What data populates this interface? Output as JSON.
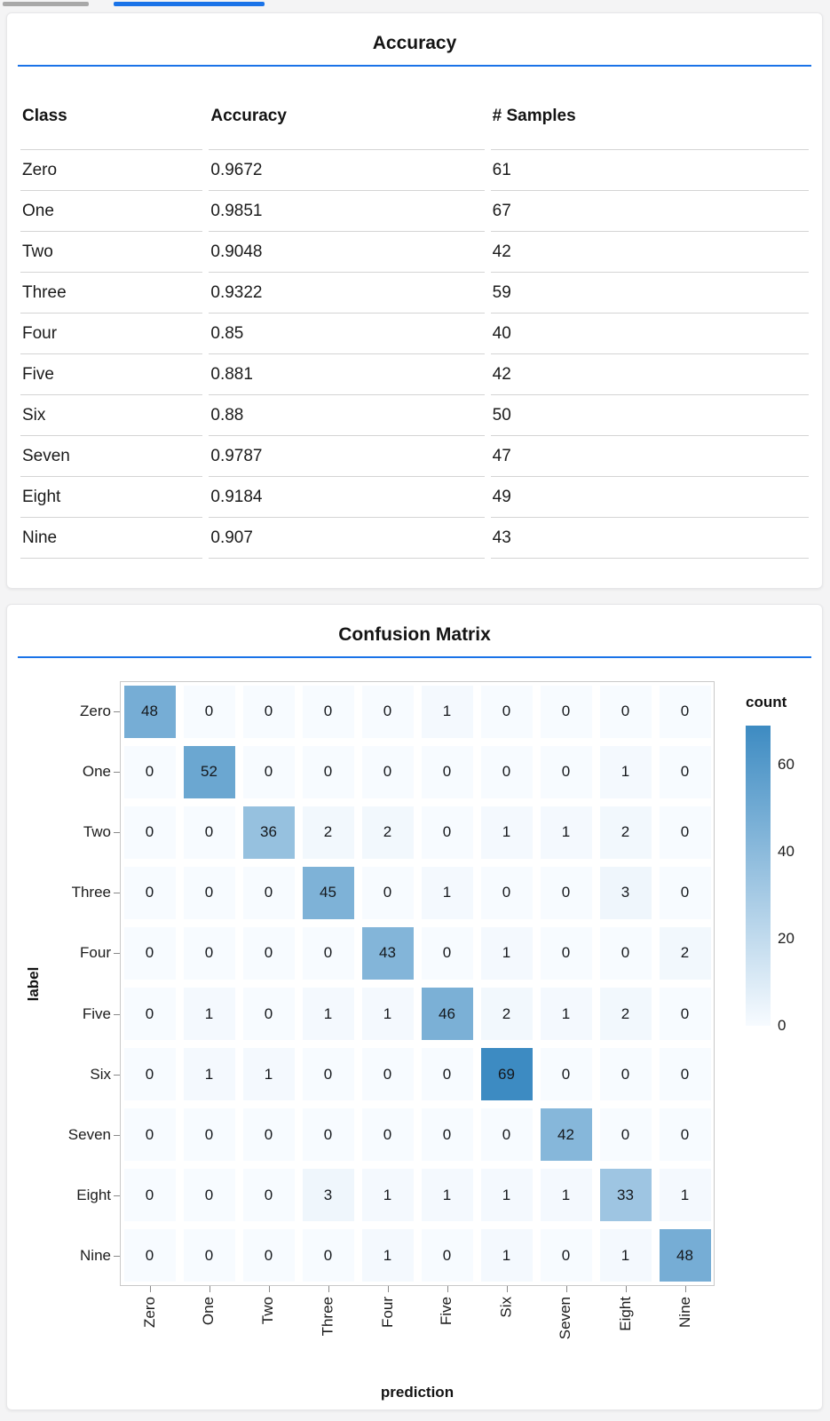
{
  "theme": {
    "accent_blue": "#1a73e8",
    "page_background": "#f4f4f5",
    "card_background": "#ffffff"
  },
  "top_bars": {
    "inactive_color": "#a8a8a8",
    "active_color": "#1a73e8"
  },
  "accuracy_card": {
    "title": "Accuracy",
    "table": {
      "columns": [
        "Class",
        "Accuracy",
        "# Samples"
      ],
      "rows": [
        [
          "Zero",
          "0.9672",
          "61"
        ],
        [
          "One",
          "0.9851",
          "67"
        ],
        [
          "Two",
          "0.9048",
          "42"
        ],
        [
          "Three",
          "0.9322",
          "59"
        ],
        [
          "Four",
          "0.85",
          "40"
        ],
        [
          "Five",
          "0.881",
          "42"
        ],
        [
          "Six",
          "0.88",
          "50"
        ],
        [
          "Seven",
          "0.9787",
          "47"
        ],
        [
          "Eight",
          "0.9184",
          "49"
        ],
        [
          "Nine",
          "0.907",
          "43"
        ]
      ]
    }
  },
  "confusion_card": {
    "title": "Confusion Matrix"
  },
  "chart_data": {
    "type": "heatmap",
    "title": "Confusion Matrix",
    "xlabel": "prediction",
    "ylabel": "label",
    "categories": [
      "Zero",
      "One",
      "Two",
      "Three",
      "Four",
      "Five",
      "Six",
      "Seven",
      "Eight",
      "Nine"
    ],
    "matrix": [
      [
        48,
        0,
        0,
        0,
        0,
        1,
        0,
        0,
        0,
        0
      ],
      [
        0,
        52,
        0,
        0,
        0,
        0,
        0,
        0,
        1,
        0
      ],
      [
        0,
        0,
        36,
        2,
        2,
        0,
        1,
        1,
        2,
        0
      ],
      [
        0,
        0,
        0,
        45,
        0,
        1,
        0,
        0,
        3,
        0
      ],
      [
        0,
        0,
        0,
        0,
        43,
        0,
        1,
        0,
        0,
        2
      ],
      [
        0,
        1,
        0,
        1,
        1,
        46,
        2,
        1,
        2,
        0
      ],
      [
        0,
        1,
        1,
        0,
        0,
        0,
        69,
        0,
        0,
        0
      ],
      [
        0,
        0,
        0,
        0,
        0,
        0,
        0,
        42,
        0,
        0
      ],
      [
        0,
        0,
        0,
        3,
        1,
        1,
        1,
        1,
        33,
        1
      ],
      [
        0,
        0,
        0,
        0,
        1,
        0,
        1,
        0,
        1,
        48
      ]
    ],
    "legend": {
      "title": "count",
      "ticks": [
        60,
        40,
        20,
        0
      ],
      "domain": [
        0,
        69
      ],
      "color_min": "#f7fbff",
      "color_max": "#3d8bc2"
    },
    "layout": {
      "grid": false,
      "legend_position": "right",
      "cell_gap": 9
    }
  }
}
